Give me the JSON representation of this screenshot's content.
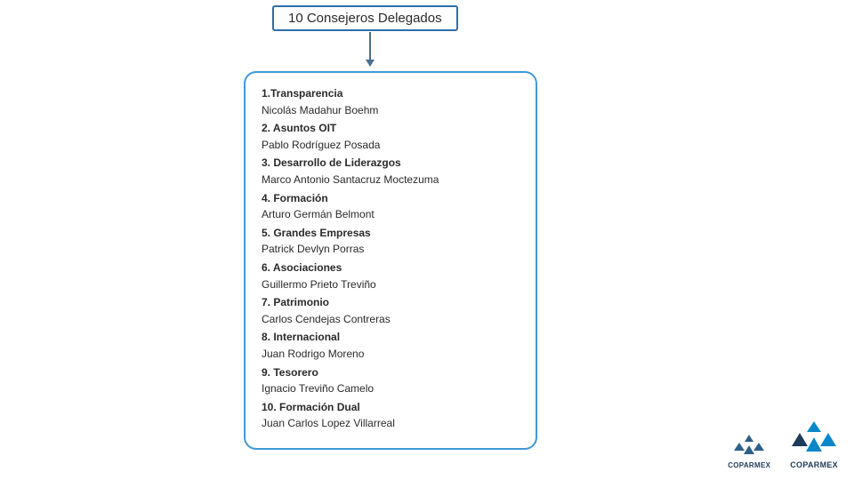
{
  "header": {
    "title": "10 Consejeros Delegados",
    "border_color": "#2d6ea8",
    "text_color": "#2a2a2a",
    "fontsize": 15
  },
  "arrow": {
    "color": "#4b6f8f"
  },
  "box": {
    "border_color": "#4099d6",
    "border_radius": 14,
    "background": "#ffffff"
  },
  "items": [
    {
      "title": "1.Transparencia",
      "person": "Nicolás Madahur Boehm"
    },
    {
      "title": "2. Asuntos OIT",
      "person": "Pablo Rodríguez Posada"
    },
    {
      "title": "3. Desarrollo de Liderazgos",
      "person": "Marco Antonio Santacruz Moctezuma"
    },
    {
      "title": "4. Formación",
      "person": "Arturo Germán Belmont"
    },
    {
      "title": "5. Grandes Empresas",
      "person": "Patrick Devlyn Porras"
    },
    {
      "title": "6. Asociaciones",
      "person": "Guillermo Prieto Treviño"
    },
    {
      "title": "7. Patrimonio",
      "person": "Carlos Cendejas Contreras"
    },
    {
      "title": "8. Internacional",
      "person": "Juan Rodrigo Moreno"
    },
    {
      "title": "9. Tesorero",
      "person": "Ignacio Treviño Camelo"
    },
    {
      "title": "10. Formación Dual",
      "person": "Juan Carlos Lopez Villarreal"
    }
  ],
  "logos": {
    "small": {
      "name": "COPARMEX",
      "color": "#2d6089"
    },
    "large": {
      "name": "COPARMEX",
      "color1": "#0b87c9",
      "color2": "#1f3b5a"
    }
  },
  "corner_arcs": {
    "color1": "#0b87c9",
    "color2": "#0f6aa0"
  },
  "typography": {
    "title_fontsize": 12,
    "person_fontsize": 12,
    "title_weight": "bold",
    "text_color": "#2a2a2a"
  }
}
